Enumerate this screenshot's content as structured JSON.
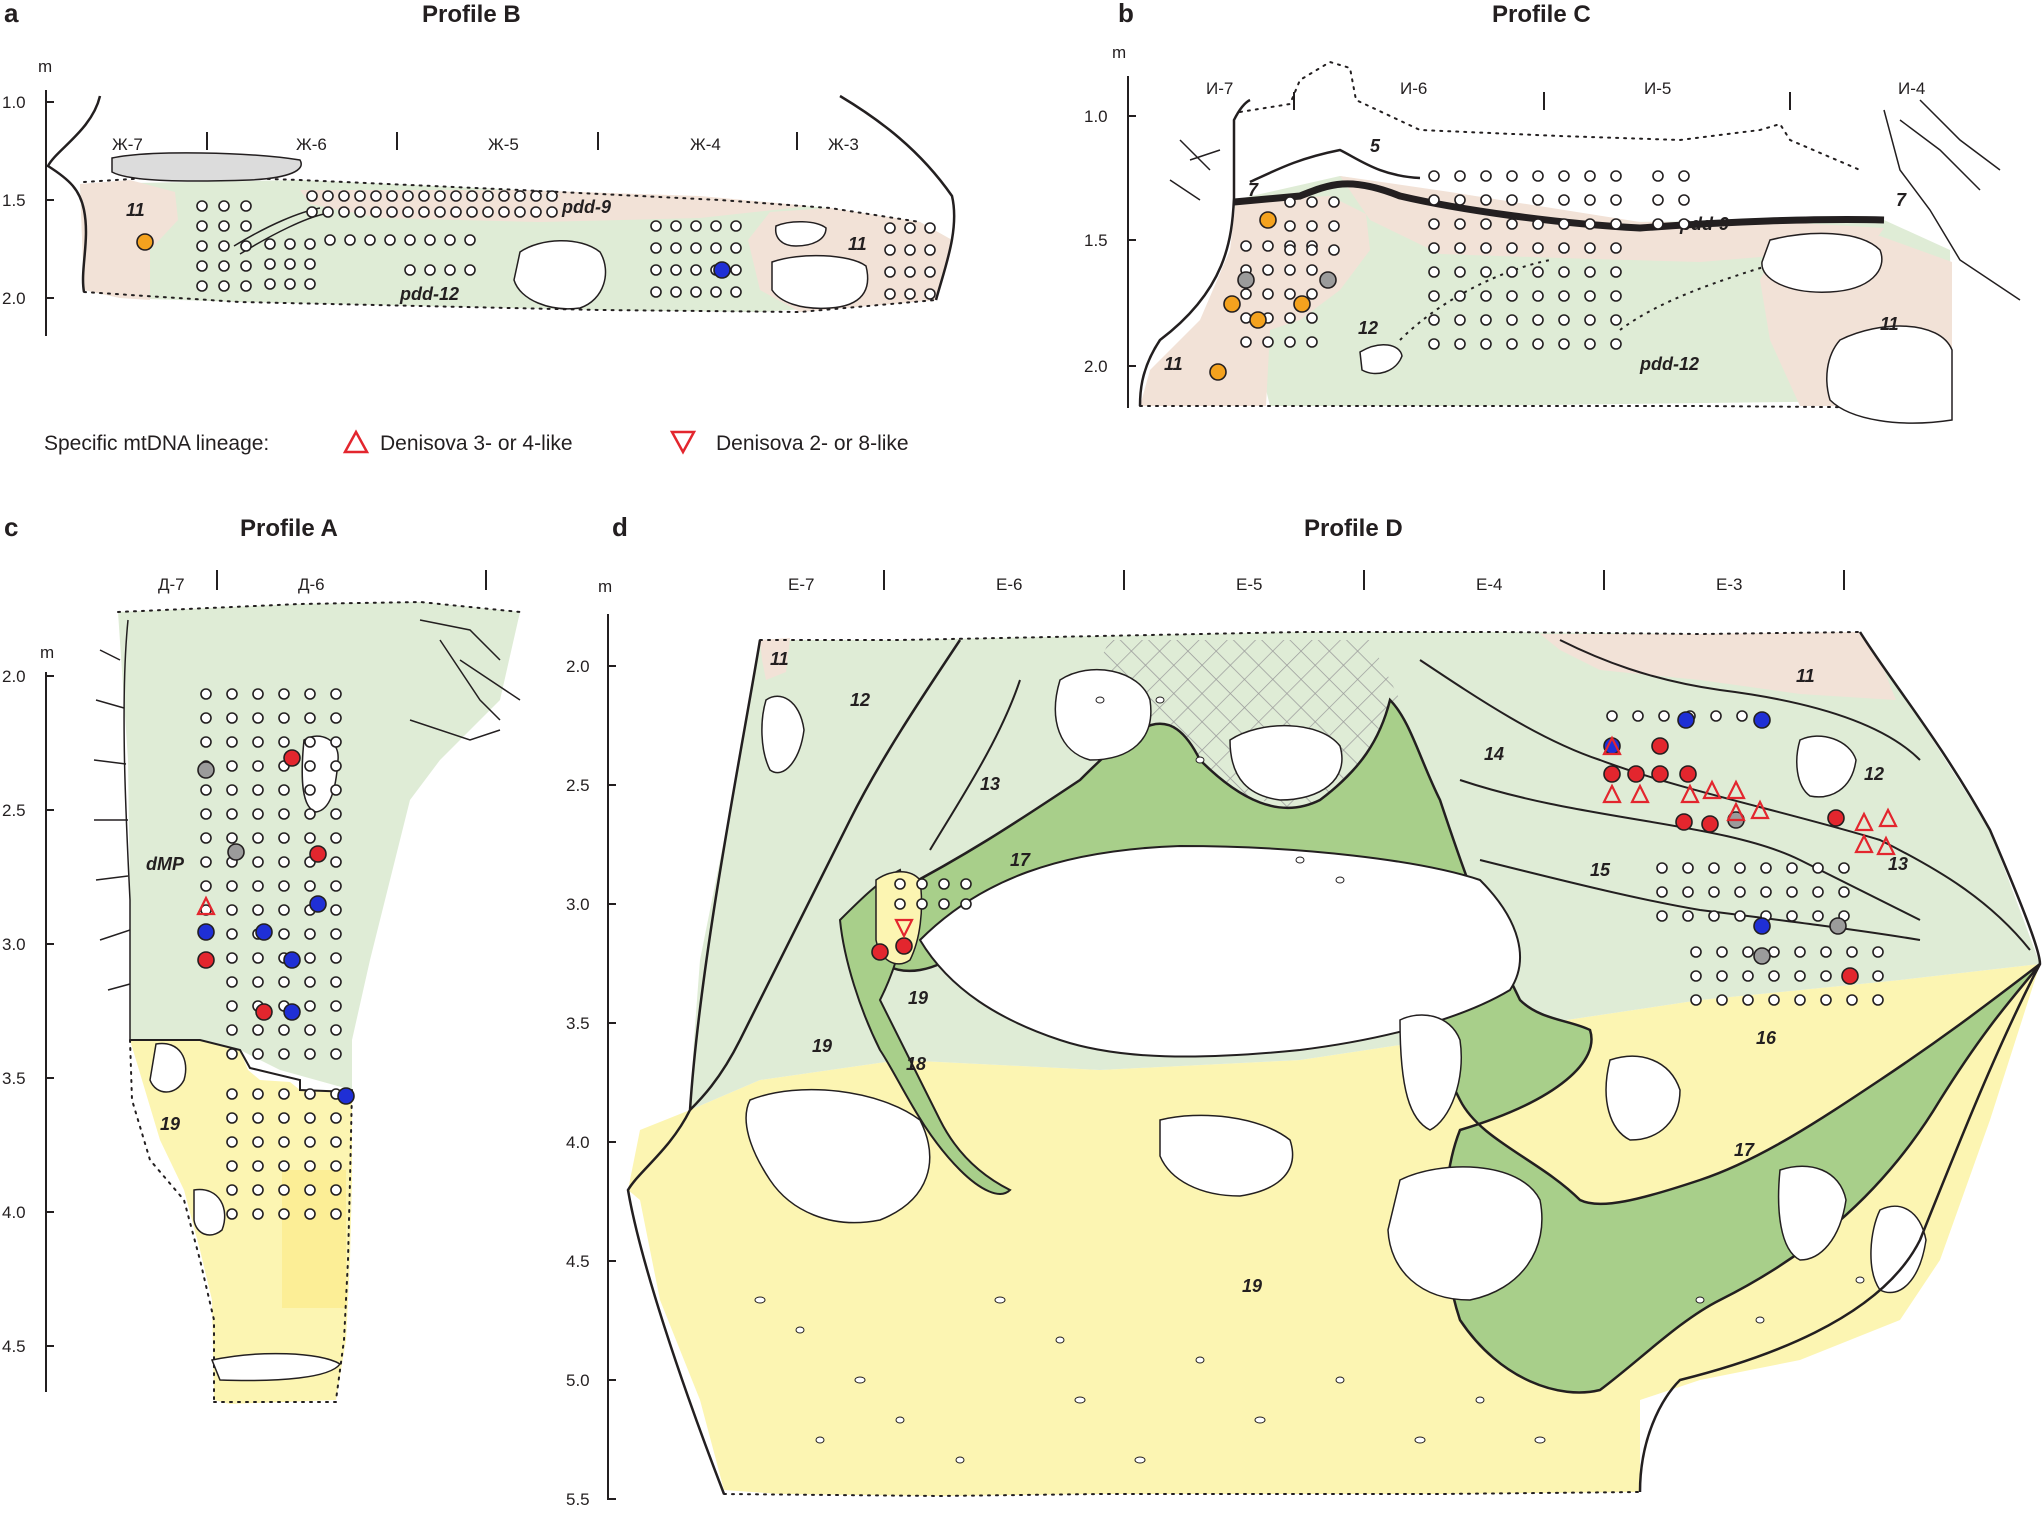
{
  "colors": {
    "green_light": "#dfecd6",
    "green_dark": "#a8cf8a",
    "yellow": "#fcf5b2",
    "pink": "#f2e2d7",
    "orange": "#f4a21e",
    "red": "#e3262e",
    "blue": "#1f2fd6",
    "grey": "#9b9b9b",
    "outline": "#231f20"
  },
  "legend": {
    "title": "Specific mtDNA lineage:",
    "up_label": "Denisova 3- or 4-like",
    "down_label": "Denisova 2- or 8-like",
    "up_icon": "triangle-up-icon",
    "down_icon": "triangle-down-icon"
  },
  "panels": {
    "a": {
      "letter": "a",
      "title": "Profile B",
      "unit": "m",
      "ticks": [
        "1.0",
        "1.5",
        "2.0"
      ],
      "squares": [
        "Ж-7",
        "Ж-6",
        "Ж-5",
        "Ж-4",
        "Ж-3"
      ],
      "layers": [
        "11",
        "pdd-9",
        "pdd-12",
        "11"
      ]
    },
    "b": {
      "letter": "b",
      "title": "Profile C",
      "unit": "m",
      "ticks": [
        "1.0",
        "1.5",
        "2.0"
      ],
      "squares": [
        "И-7",
        "И-6",
        "И-5",
        "И-4"
      ],
      "layers": [
        "5",
        "7",
        "pdd-9",
        "12",
        "11",
        "pdd-12",
        "11",
        "7"
      ]
    },
    "c": {
      "letter": "c",
      "title": "Profile A",
      "unit": "m",
      "ticks": [
        "2.0",
        "2.5",
        "3.0",
        "3.5",
        "4.0",
        "4.5"
      ],
      "squares": [
        "Д-7",
        "Д-6"
      ],
      "layers": [
        "dMP",
        "19"
      ]
    },
    "d": {
      "letter": "d",
      "title": "Profile D",
      "unit": "m",
      "ticks": [
        "2.0",
        "2.5",
        "3.0",
        "3.5",
        "4.0",
        "4.5",
        "5.0",
        "5.5"
      ],
      "squares": [
        "Е-7",
        "Е-6",
        "Е-5",
        "Е-4",
        "Е-3"
      ],
      "layers": [
        "11",
        "12",
        "13",
        "17",
        "19",
        "18",
        "19",
        "14",
        "15",
        "11",
        "12",
        "13",
        "16",
        "17",
        "19"
      ]
    }
  }
}
